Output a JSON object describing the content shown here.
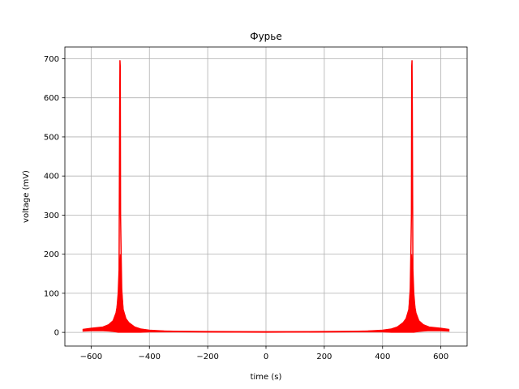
{
  "chart_data": {
    "type": "line",
    "title": "Фурье",
    "xlabel": "time (s)",
    "ylabel": "voltage (mV)",
    "xlim": [
      -690,
      690
    ],
    "ylim": [
      -35,
      730
    ],
    "xticks": [
      -600,
      -400,
      -200,
      0,
      200,
      400,
      600
    ],
    "yticks": [
      0,
      100,
      200,
      300,
      400,
      500,
      600,
      700
    ],
    "xtick_labels": [
      "−600",
      "−400",
      "−200",
      "0",
      "200",
      "400",
      "600"
    ],
    "ytick_labels": [
      "0",
      "100",
      "200",
      "300",
      "400",
      "500",
      "600",
      "700"
    ],
    "grid": true,
    "series": [
      {
        "color": "#ff0000",
        "points": [
          [
            -628,
            6
          ],
          [
            -600,
            8
          ],
          [
            -570,
            10
          ],
          [
            -550,
            13
          ],
          [
            -530,
            20
          ],
          [
            -520,
            30
          ],
          [
            -512,
            55
          ],
          [
            -507,
            100
          ],
          [
            -504,
            160
          ],
          [
            -502,
            570
          ],
          [
            -501,
            695
          ],
          [
            -500,
            680
          ],
          [
            -499,
            300
          ],
          [
            -497,
            200
          ],
          [
            -495,
            110
          ],
          [
            -490,
            55
          ],
          [
            -480,
            30
          ],
          [
            -470,
            20
          ],
          [
            -450,
            12
          ],
          [
            -420,
            6
          ],
          [
            -400,
            4
          ],
          [
            -350,
            3
          ],
          [
            -300,
            2
          ],
          [
            -200,
            1.5
          ],
          [
            -100,
            1
          ],
          [
            0,
            1
          ],
          [
            100,
            1
          ],
          [
            200,
            1.5
          ],
          [
            300,
            2
          ],
          [
            350,
            3
          ],
          [
            400,
            4
          ],
          [
            420,
            6
          ],
          [
            450,
            12
          ],
          [
            470,
            20
          ],
          [
            480,
            30
          ],
          [
            490,
            55
          ],
          [
            495,
            110
          ],
          [
            497,
            200
          ],
          [
            499,
            300
          ],
          [
            500,
            680
          ],
          [
            501,
            695
          ],
          [
            502,
            570
          ],
          [
            504,
            160
          ],
          [
            507,
            100
          ],
          [
            512,
            55
          ],
          [
            520,
            30
          ],
          [
            530,
            20
          ],
          [
            550,
            13
          ],
          [
            570,
            10
          ],
          [
            600,
            8
          ],
          [
            628,
            6
          ]
        ],
        "band": [
          [
            -628,
            3,
            8
          ],
          [
            -600,
            4,
            11
          ],
          [
            -560,
            4,
            14
          ],
          [
            -540,
            3,
            20
          ],
          [
            -525,
            2,
            30
          ],
          [
            -515,
            1,
            50
          ],
          [
            -508,
            0,
            80
          ],
          [
            -505,
            0,
            120
          ],
          [
            -500,
            0,
            200
          ],
          [
            -495,
            0,
            110
          ],
          [
            -490,
            0,
            60
          ],
          [
            -480,
            0,
            35
          ],
          [
            -470,
            0,
            25
          ],
          [
            -450,
            0,
            14
          ],
          [
            -430,
            0,
            9
          ],
          [
            -400,
            1,
            6
          ],
          [
            -350,
            1,
            4
          ],
          [
            -300,
            1,
            3
          ],
          [
            -200,
            0.5,
            2.5
          ],
          [
            0,
            0,
            2
          ],
          [
            200,
            0.5,
            2.5
          ],
          [
            300,
            1,
            3
          ],
          [
            350,
            1,
            4
          ],
          [
            400,
            1,
            6
          ],
          [
            430,
            0,
            9
          ],
          [
            450,
            0,
            14
          ],
          [
            470,
            0,
            25
          ],
          [
            480,
            0,
            35
          ],
          [
            490,
            0,
            60
          ],
          [
            495,
            0,
            110
          ],
          [
            500,
            0,
            200
          ],
          [
            505,
            0,
            120
          ],
          [
            508,
            0,
            80
          ],
          [
            515,
            1,
            50
          ],
          [
            525,
            2,
            30
          ],
          [
            540,
            3,
            20
          ],
          [
            560,
            4,
            14
          ],
          [
            600,
            4,
            11
          ],
          [
            628,
            3,
            8
          ]
        ]
      }
    ]
  }
}
